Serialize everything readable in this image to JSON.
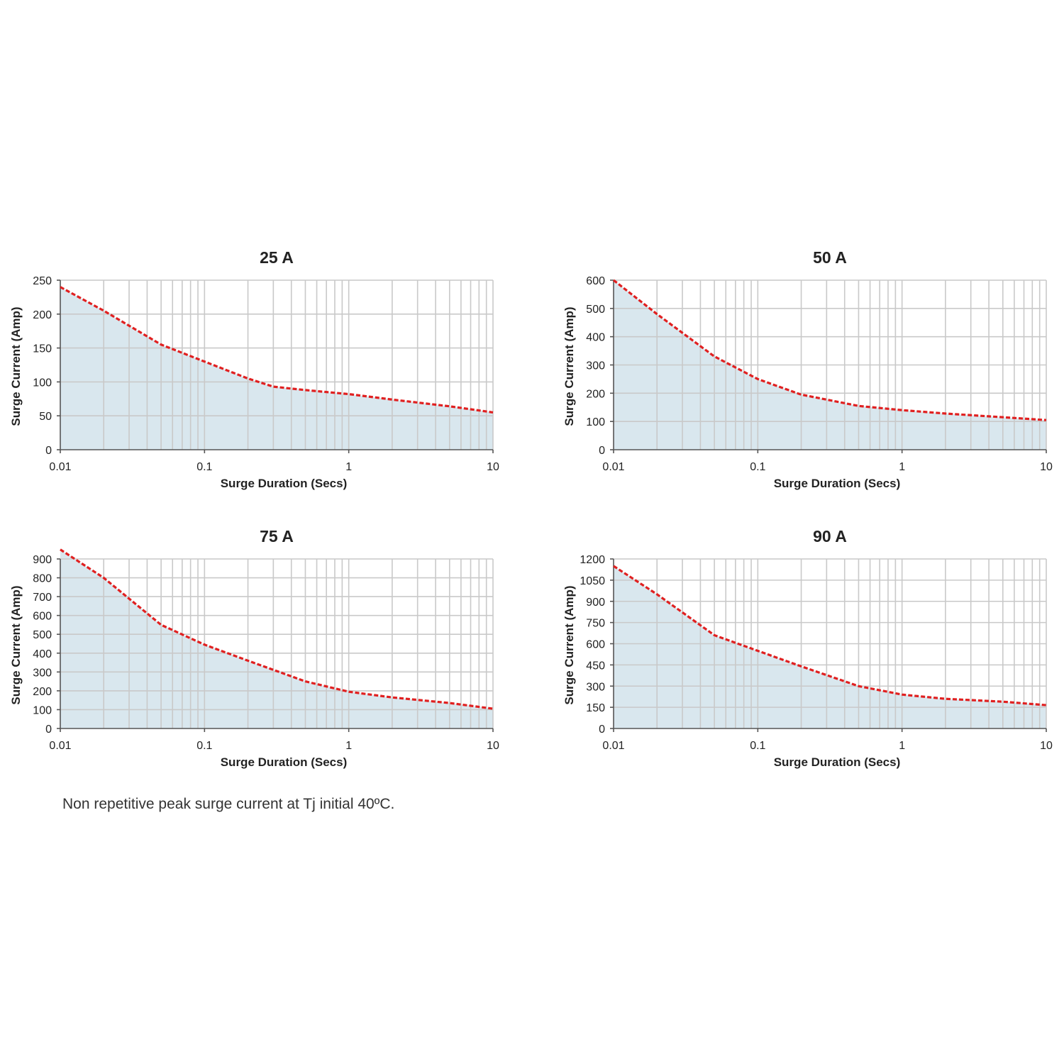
{
  "colors": {
    "line": "#e02020",
    "fill": "#d9e7ee",
    "grid": "#c9c9c9",
    "axis": "#555555"
  },
  "caption": "Non repetitive peak surge current at Tj initial 40ºC.",
  "chart_data": [
    {
      "type": "area",
      "title": "25 A",
      "xlabel": "Surge Duration (Secs)",
      "ylabel": "Surge Current (Amp)",
      "xscale": "log",
      "xlim": [
        0.01,
        10
      ],
      "ylim": [
        0,
        250
      ],
      "xticks": [
        0.01,
        0.1,
        1,
        10
      ],
      "xtick_labels": [
        "0.01",
        "0.1",
        "1",
        "10"
      ],
      "yticks": [
        0,
        50,
        100,
        150,
        200,
        250
      ],
      "ytick_labels": [
        "0",
        "50",
        "100",
        "150",
        "200",
        "250"
      ],
      "grid": true,
      "series": [
        {
          "name": "25 A",
          "style": "dashed",
          "x": [
            0.01,
            0.02,
            0.05,
            0.1,
            0.2,
            0.3,
            0.5,
            1,
            2,
            5,
            10
          ],
          "y": [
            240,
            205,
            155,
            130,
            105,
            93,
            88,
            82,
            74,
            64,
            55
          ]
        }
      ]
    },
    {
      "type": "area",
      "title": "50 A",
      "xlabel": "Surge Duration (Secs)",
      "ylabel": "Surge Current (Amp)",
      "xscale": "log",
      "xlim": [
        0.01,
        10
      ],
      "ylim": [
        0,
        600
      ],
      "xticks": [
        0.01,
        0.1,
        1,
        10
      ],
      "xtick_labels": [
        "0.01",
        "0.1",
        "1",
        "10"
      ],
      "yticks": [
        0,
        100,
        200,
        300,
        400,
        500,
        600
      ],
      "ytick_labels": [
        "0",
        "100",
        "200",
        "300",
        "400",
        "500",
        "600"
      ],
      "grid": true,
      "series": [
        {
          "name": "50 A",
          "style": "dashed",
          "x": [
            0.01,
            0.02,
            0.05,
            0.1,
            0.2,
            0.5,
            1,
            2,
            5,
            10
          ],
          "y": [
            600,
            480,
            330,
            250,
            195,
            155,
            140,
            128,
            115,
            105
          ]
        }
      ]
    },
    {
      "type": "area",
      "title": "75 A",
      "xlabel": "Surge Duration (Secs)",
      "ylabel": "Surge Current (Amp)",
      "xscale": "log",
      "xlim": [
        0.01,
        10
      ],
      "ylim": [
        0,
        900
      ],
      "xticks": [
        0.01,
        0.1,
        1,
        10
      ],
      "xtick_labels": [
        "0.01",
        "0.1",
        "1",
        "10"
      ],
      "yticks": [
        0,
        100,
        200,
        300,
        400,
        500,
        600,
        700,
        800,
        900
      ],
      "ytick_labels": [
        "0",
        "100",
        "200",
        "300",
        "400",
        "500",
        "600",
        "700",
        "800",
        "900"
      ],
      "grid": true,
      "series": [
        {
          "name": "75 A",
          "style": "dashed",
          "x": [
            0.01,
            0.02,
            0.05,
            0.1,
            0.2,
            0.5,
            1,
            2,
            5,
            10
          ],
          "y": [
            950,
            800,
            550,
            445,
            360,
            250,
            195,
            165,
            135,
            105
          ]
        }
      ]
    },
    {
      "type": "area",
      "title": "90 A",
      "xlabel": "Surge Duration (Secs)",
      "ylabel": "Surge Current (Amp)",
      "xscale": "log",
      "xlim": [
        0.01,
        10
      ],
      "ylim": [
        0,
        1200
      ],
      "xticks": [
        0.01,
        0.1,
        1,
        10
      ],
      "xtick_labels": [
        "0.01",
        "0.1",
        "1",
        "10"
      ],
      "yticks": [
        0,
        150,
        300,
        450,
        600,
        750,
        900,
        1050,
        1200
      ],
      "ytick_labels": [
        "0",
        "150",
        "300",
        "450",
        "600",
        "750",
        "900",
        "1050",
        "1200"
      ],
      "grid": true,
      "series": [
        {
          "name": "90 A",
          "style": "dashed",
          "x": [
            0.01,
            0.02,
            0.05,
            0.1,
            0.2,
            0.5,
            1,
            2,
            5,
            10
          ],
          "y": [
            1150,
            950,
            660,
            550,
            440,
            300,
            240,
            210,
            190,
            165
          ]
        }
      ]
    }
  ]
}
